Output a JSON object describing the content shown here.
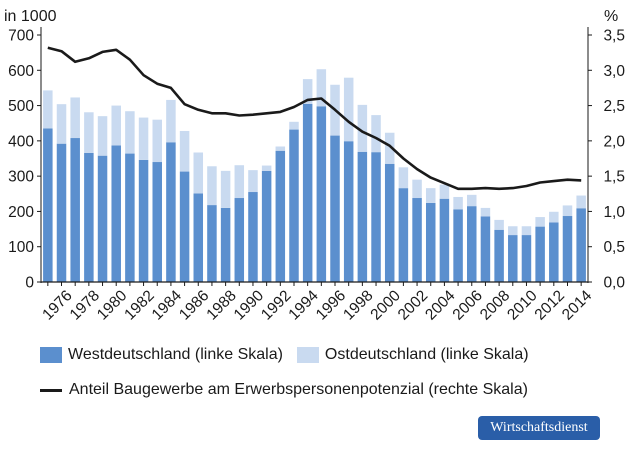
{
  "chart_data": {
    "type": "bar",
    "y_left_unit": "in 1000",
    "y_right_unit": "%",
    "ylim_left": [
      0,
      700
    ],
    "ylim_right": [
      0,
      3.5
    ],
    "yticks_left": [
      "0",
      "100",
      "200",
      "300",
      "400",
      "500",
      "600",
      "700"
    ],
    "yticks_right": [
      "0,0",
      "0,5",
      "1,0",
      "1,5",
      "2,0",
      "2,5",
      "3,0",
      "3,5"
    ],
    "years": [
      1975,
      1976,
      1977,
      1978,
      1979,
      1980,
      1981,
      1982,
      1983,
      1984,
      1985,
      1986,
      1987,
      1988,
      1989,
      1990,
      1991,
      1992,
      1993,
      1994,
      1995,
      1996,
      1997,
      1998,
      1999,
      2000,
      2001,
      2002,
      2003,
      2004,
      2005,
      2006,
      2007,
      2008,
      2009,
      2010,
      2011,
      2012,
      2013,
      2014
    ],
    "xtick_labels": [
      "1976",
      "1978",
      "1980",
      "1982",
      "1984",
      "1986",
      "1988",
      "1990",
      "1992",
      "1994",
      "1996",
      "1998",
      "2000",
      "2002",
      "2004",
      "2006",
      "2008",
      "2010",
      "2012",
      "2014"
    ],
    "series": [
      {
        "name": "Westdeutschland (linke Skala)",
        "color": "#5b8fce",
        "values": [
          435,
          392,
          408,
          366,
          358,
          387,
          364,
          346,
          340,
          396,
          313,
          251,
          218,
          210,
          238,
          255,
          315,
          372,
          432,
          505,
          498,
          415,
          399,
          369,
          368,
          335,
          266,
          238,
          224,
          236,
          206,
          215,
          186,
          148,
          133,
          133,
          157,
          169,
          187,
          209
        ]
      },
      {
        "name": "Ostdeutschland (linke Skala)",
        "color": "#c9daf0",
        "values": [
          108,
          112,
          115,
          115,
          112,
          113,
          120,
          120,
          120,
          120,
          115,
          116,
          110,
          105,
          93,
          62,
          15,
          12,
          22,
          70,
          105,
          144,
          180,
          133,
          105,
          88,
          59,
          52,
          42,
          40,
          35,
          32,
          24,
          28,
          25,
          25,
          27,
          30,
          30,
          36
        ]
      },
      {
        "name": "Anteil Baugewerbe am Erwerbspersonenpotenzial (rechte Skala)",
        "color": "#1a1a1a",
        "type": "line",
        "values": [
          3.32,
          3.27,
          3.12,
          3.17,
          3.26,
          3.29,
          3.15,
          2.93,
          2.81,
          2.75,
          2.52,
          2.44,
          2.39,
          2.39,
          2.36,
          2.37,
          2.39,
          2.41,
          2.48,
          2.58,
          2.6,
          2.44,
          2.27,
          2.13,
          2.04,
          1.93,
          1.75,
          1.6,
          1.48,
          1.4,
          1.32,
          1.32,
          1.33,
          1.32,
          1.33,
          1.36,
          1.41,
          1.43,
          1.45,
          1.44
        ]
      }
    ]
  },
  "badge": "Wirtschaftsdienst"
}
